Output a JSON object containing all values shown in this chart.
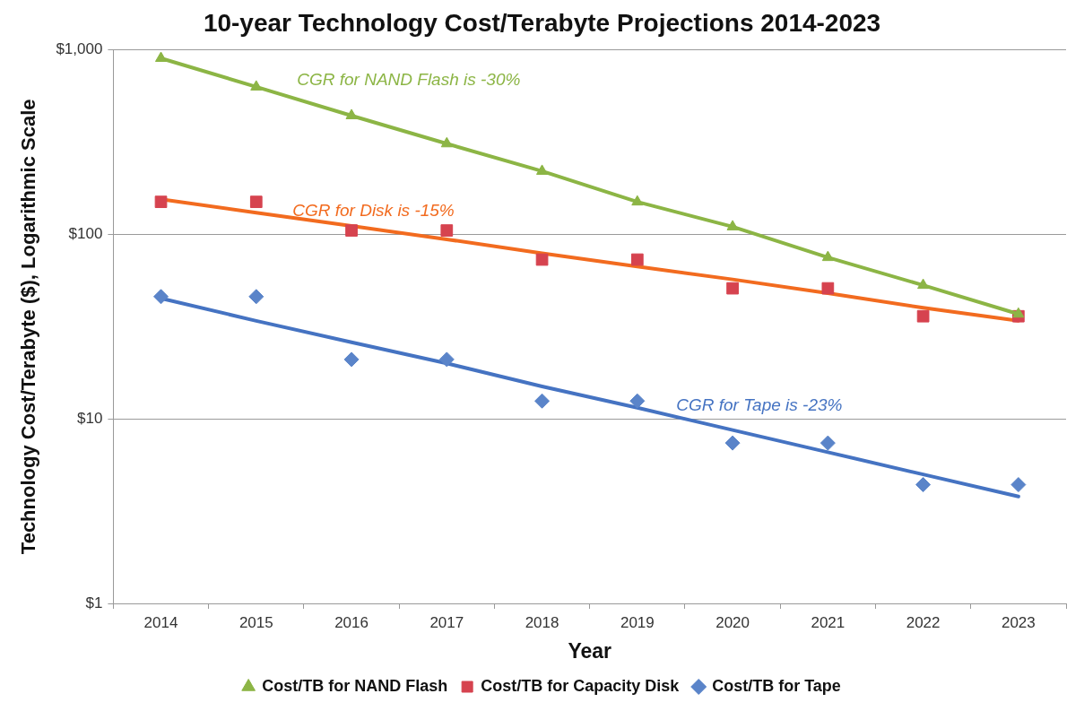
{
  "chart_data": {
    "type": "scatter",
    "title": "10-year Technology Cost/Terabyte Projections 2014-2023",
    "xlabel": "Year",
    "ylabel": "Technology Cost/Terabyte ($), Logarithmic Scale",
    "categories": [
      "2014",
      "2015",
      "2016",
      "2017",
      "2018",
      "2019",
      "2020",
      "2021",
      "2022",
      "2023"
    ],
    "series": [
      {
        "name": "Cost/TB for NAND Flash",
        "type": "line",
        "color": "#8cb545",
        "marker": "triangle",
        "values": [
          900,
          630,
          440,
          310,
          220,
          150,
          110,
          75,
          53,
          37
        ]
      },
      {
        "name": "Cost/TB for Capacity Disk",
        "color": "#d6434f",
        "marker": "square",
        "values": [
          150,
          150,
          105,
          105,
          73,
          73,
          51,
          51,
          36,
          36
        ]
      },
      {
        "name": "Cost/TB for Tape",
        "color": "#5a84c9",
        "marker": "diamond",
        "values": [
          46,
          46,
          21,
          21,
          12.5,
          12.5,
          7.4,
          7.4,
          4.4,
          4.4
        ]
      },
      {
        "type": "line",
        "color": "#f26b1f",
        "marker": "none",
        "values": [
          155,
          131,
          111,
          94,
          79,
          67,
          57,
          48,
          40,
          34
        ]
      },
      {
        "type": "line",
        "color": "#4573c2",
        "marker": "none",
        "values": [
          45,
          34,
          26,
          20,
          15,
          11.5,
          8.7,
          6.6,
          5,
          3.8
        ]
      }
    ],
    "annotations": [
      "CGR for NAND Flash is -30%",
      "CGR for Disk is -15%",
      "CGR for Tape is -23%"
    ],
    "log": true,
    "ylim": [
      1,
      1000
    ],
    "yticks": [
      {
        "value": 1,
        "label": "$1"
      },
      {
        "value": 10,
        "label": "$10"
      },
      {
        "value": 100,
        "label": "$100"
      },
      {
        "value": 1000,
        "label": "$1,000"
      }
    ],
    "grid": "y",
    "legend": "bottom",
    "line_style": "solid"
  }
}
